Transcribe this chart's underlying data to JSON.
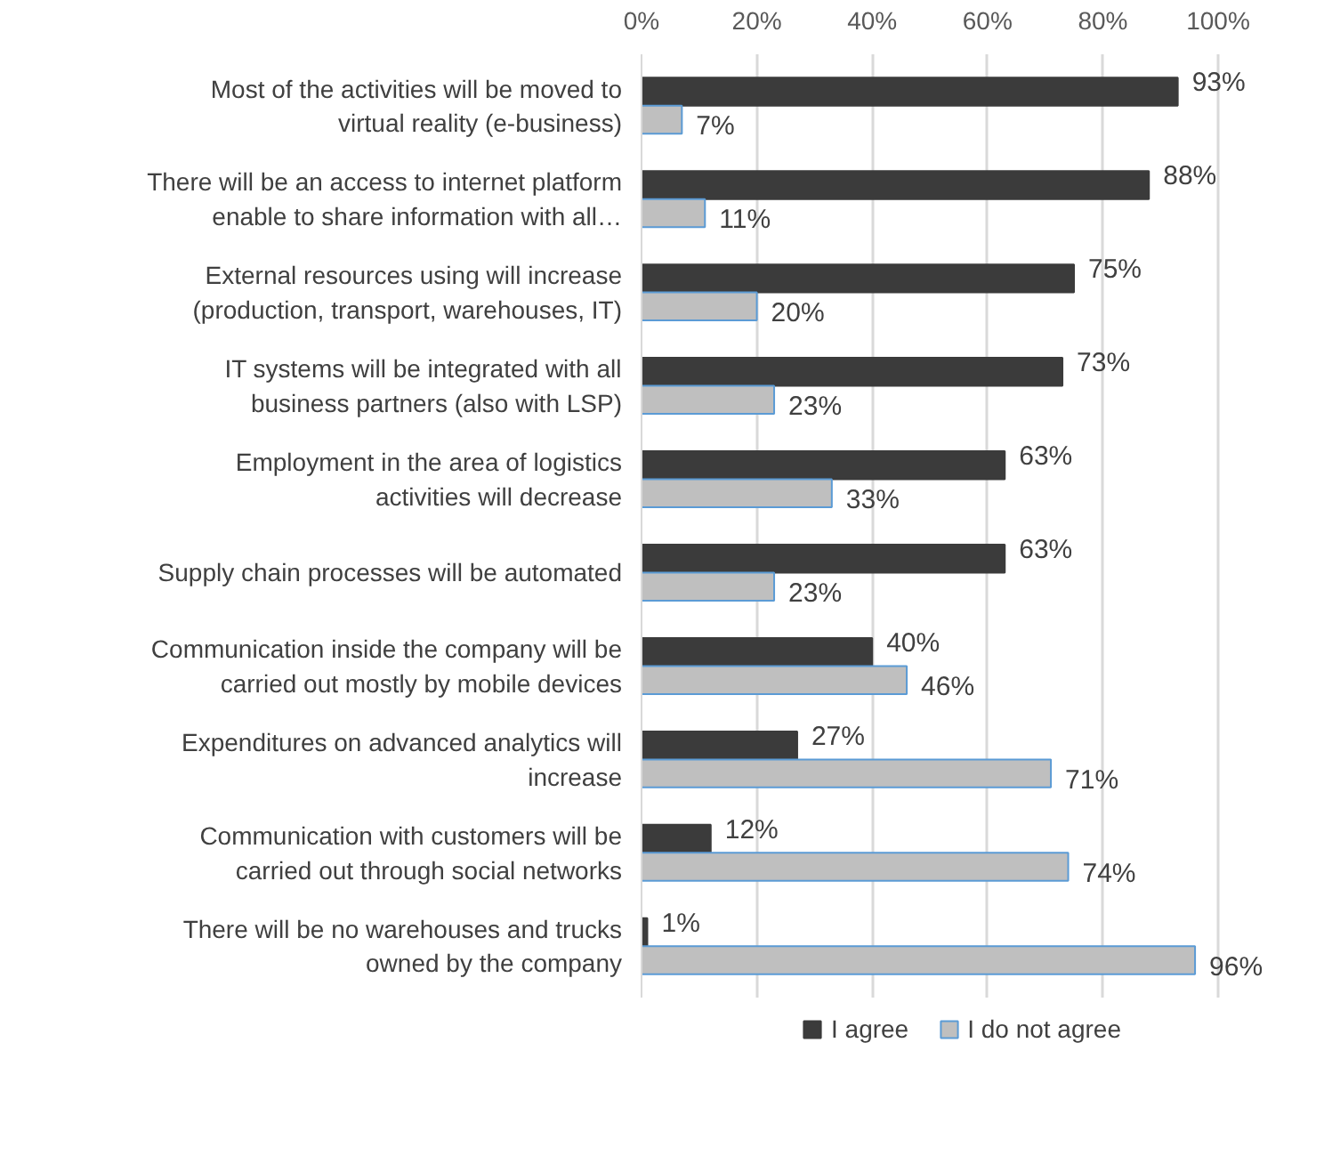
{
  "chart_data": {
    "type": "bar",
    "orientation": "horizontal",
    "legend": "bottom",
    "grid": "x",
    "categories": [
      "Most of the activities will be moved to\nvirtual reality (e-business)",
      "There will be an access to internet platform\nenable to share information with all…",
      "External resources using will increase\n(production, transport, warehouses, IT)",
      "IT systems will be integrated with all\nbusiness partners (also with LSP)",
      "Employment in the area of logistics\nactivities will decrease",
      "Supply chain processes will be automated",
      "Communication inside the company will be\ncarried out mostly by mobile devices",
      "Expenditures on advanced analytics will\nincrease",
      "Communication with customers will be\ncarried out through social networks",
      "There will be no warehouses and trucks\nowned by the company"
    ],
    "xlim": [
      0,
      100
    ],
    "xticks": [
      {
        "value": 0,
        "label": "0%"
      },
      {
        "value": 20,
        "label": "20%"
      },
      {
        "value": 40,
        "label": "40%"
      },
      {
        "value": 60,
        "label": "60%"
      },
      {
        "value": 80,
        "label": "80%"
      },
      {
        "value": 100,
        "label": "100%"
      }
    ],
    "series": [
      {
        "name": "I agree",
        "color": "#3b3b3b",
        "values": [
          93,
          88,
          75,
          73,
          63,
          63,
          40,
          27,
          12,
          1
        ],
        "value_labels": [
          "93%",
          "88%",
          "75%",
          "73%",
          "63%",
          "63%",
          "40%",
          "27%",
          "12%",
          "1%"
        ]
      },
      {
        "name": "I do not agree",
        "color": "#bfbfbf",
        "values": [
          7,
          11,
          20,
          23,
          33,
          23,
          46,
          71,
          74,
          96
        ],
        "value_labels": [
          "7%",
          "11%",
          "20%",
          "23%",
          "33%",
          "23%",
          "46%",
          "71%",
          "74%",
          "96%"
        ]
      }
    ]
  }
}
